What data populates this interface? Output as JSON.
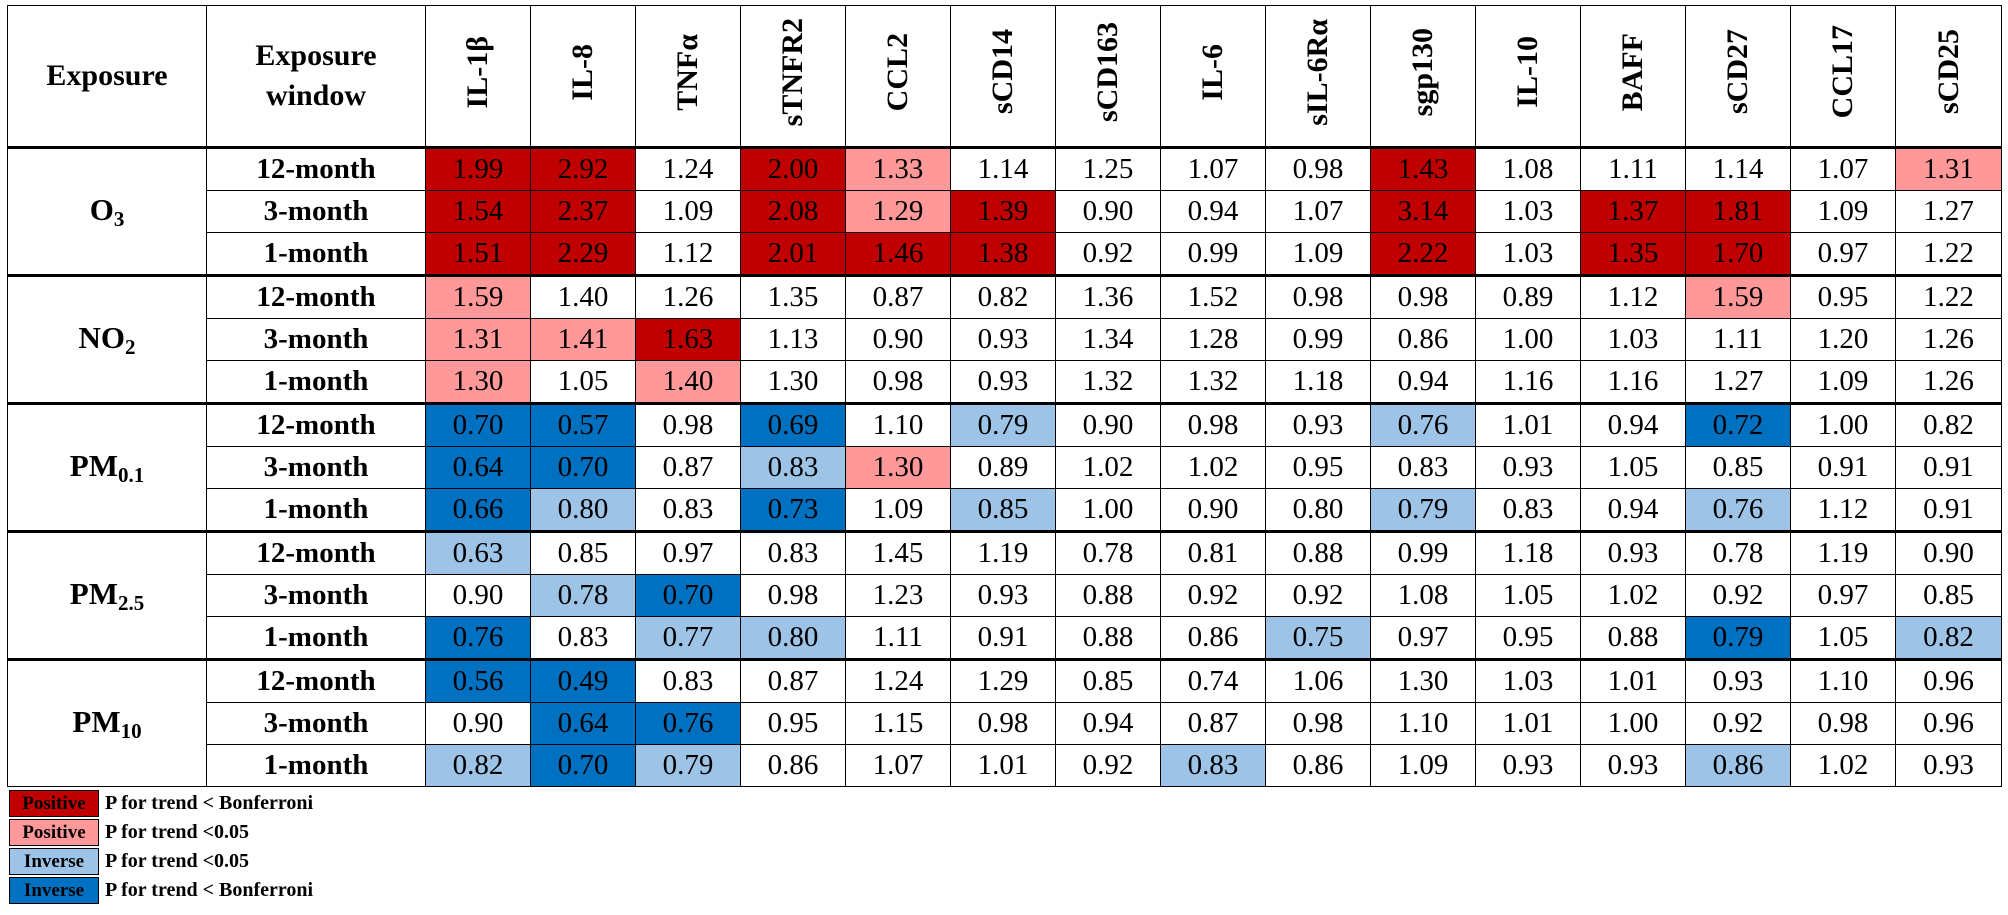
{
  "chart_data": {
    "type": "heatmap",
    "header": {
      "exposure": "Exposure",
      "window": "Exposure window"
    },
    "columns": [
      "IL-1β",
      "IL-8",
      "TNFα",
      "sTNFR2",
      "CCL2",
      "sCD14",
      "sCD163",
      "IL-6",
      "sIL-6Rα",
      "sgp130",
      "IL-10",
      "BAFF",
      "sCD27",
      "CCL17",
      "sCD25"
    ],
    "groups": [
      {
        "name": "O",
        "sub": "3",
        "rows": [
          {
            "window": "12-month",
            "values": [
              "1.99",
              "2.92",
              "1.24",
              "2.00",
              "1.33",
              "1.14",
              "1.25",
              "1.07",
              "0.98",
              "1.43",
              "1.08",
              "1.11",
              "1.14",
              "1.07",
              "1.31"
            ],
            "codes": [
              "PB",
              "PB",
              "",
              "PB",
              "P",
              "",
              "",
              "",
              "",
              "PB",
              "",
              "",
              "",
              "",
              "P"
            ]
          },
          {
            "window": "3-month",
            "values": [
              "1.54",
              "2.37",
              "1.09",
              "2.08",
              "1.29",
              "1.39",
              "0.90",
              "0.94",
              "1.07",
              "3.14",
              "1.03",
              "1.37",
              "1.81",
              "1.09",
              "1.27"
            ],
            "codes": [
              "PB",
              "PB",
              "",
              "PB",
              "P",
              "PB",
              "",
              "",
              "",
              "PB",
              "",
              "PB",
              "PB",
              "",
              ""
            ]
          },
          {
            "window": "1-month",
            "values": [
              "1.51",
              "2.29",
              "1.12",
              "2.01",
              "1.46",
              "1.38",
              "0.92",
              "0.99",
              "1.09",
              "2.22",
              "1.03",
              "1.35",
              "1.70",
              "0.97",
              "1.22"
            ],
            "codes": [
              "PB",
              "PB",
              "",
              "PB",
              "PB",
              "PB",
              "",
              "",
              "",
              "PB",
              "",
              "PB",
              "PB",
              "",
              ""
            ]
          }
        ]
      },
      {
        "name": "NO",
        "sub": "2",
        "rows": [
          {
            "window": "12-month",
            "values": [
              "1.59",
              "1.40",
              "1.26",
              "1.35",
              "0.87",
              "0.82",
              "1.36",
              "1.52",
              "0.98",
              "0.98",
              "0.89",
              "1.12",
              "1.59",
              "0.95",
              "1.22"
            ],
            "codes": [
              "P",
              "",
              "",
              "",
              "",
              "",
              "",
              "",
              "",
              "",
              "",
              "",
              "P",
              "",
              ""
            ]
          },
          {
            "window": "3-month",
            "values": [
              "1.31",
              "1.41",
              "1.63",
              "1.13",
              "0.90",
              "0.93",
              "1.34",
              "1.28",
              "0.99",
              "0.86",
              "1.00",
              "1.03",
              "1.11",
              "1.20",
              "1.26"
            ],
            "codes": [
              "P",
              "P",
              "PB",
              "",
              "",
              "",
              "",
              "",
              "",
              "",
              "",
              "",
              "",
              "",
              ""
            ]
          },
          {
            "window": "1-month",
            "values": [
              "1.30",
              "1.05",
              "1.40",
              "1.30",
              "0.98",
              "0.93",
              "1.32",
              "1.32",
              "1.18",
              "0.94",
              "1.16",
              "1.16",
              "1.27",
              "1.09",
              "1.26"
            ],
            "codes": [
              "P",
              "",
              "P",
              "",
              "",
              "",
              "",
              "",
              "",
              "",
              "",
              "",
              "",
              "",
              ""
            ]
          }
        ]
      },
      {
        "name": "PM",
        "sub": "0.1",
        "rows": [
          {
            "window": "12-month",
            "values": [
              "0.70",
              "0.57",
              "0.98",
              "0.69",
              "1.10",
              "0.79",
              "0.90",
              "0.98",
              "0.93",
              "0.76",
              "1.01",
              "0.94",
              "0.72",
              "1.00",
              "0.82"
            ],
            "codes": [
              "IB",
              "IB",
              "",
              "IB",
              "",
              "I",
              "",
              "",
              "",
              "I",
              "",
              "",
              "IB",
              "",
              ""
            ]
          },
          {
            "window": "3-month",
            "values": [
              "0.64",
              "0.70",
              "0.87",
              "0.83",
              "1.30",
              "0.89",
              "1.02",
              "1.02",
              "0.95",
              "0.83",
              "0.93",
              "1.05",
              "0.85",
              "0.91",
              "0.91"
            ],
            "codes": [
              "IB",
              "IB",
              "",
              "I",
              "P",
              "",
              "",
              "",
              "",
              "",
              "",
              "",
              "",
              "",
              ""
            ]
          },
          {
            "window": "1-month",
            "values": [
              "0.66",
              "0.80",
              "0.83",
              "0.73",
              "1.09",
              "0.85",
              "1.00",
              "0.90",
              "0.80",
              "0.79",
              "0.83",
              "0.94",
              "0.76",
              "1.12",
              "0.91"
            ],
            "codes": [
              "IB",
              "I",
              "",
              "IB",
              "",
              "I",
              "",
              "",
              "",
              "I",
              "",
              "",
              "I",
              "",
              ""
            ]
          }
        ]
      },
      {
        "name": "PM",
        "sub": "2.5",
        "rows": [
          {
            "window": "12-month",
            "values": [
              "0.63",
              "0.85",
              "0.97",
              "0.83",
              "1.45",
              "1.19",
              "0.78",
              "0.81",
              "0.88",
              "0.99",
              "1.18",
              "0.93",
              "0.78",
              "1.19",
              "0.90"
            ],
            "codes": [
              "I",
              "",
              "",
              "",
              "",
              "",
              "",
              "",
              "",
              "",
              "",
              "",
              "",
              "",
              ""
            ]
          },
          {
            "window": "3-month",
            "values": [
              "0.90",
              "0.78",
              "0.70",
              "0.98",
              "1.23",
              "0.93",
              "0.88",
              "0.92",
              "0.92",
              "1.08",
              "1.05",
              "1.02",
              "0.92",
              "0.97",
              "0.85"
            ],
            "codes": [
              "",
              "I",
              "IB",
              "",
              "",
              "",
              "",
              "",
              "",
              "",
              "",
              "",
              "",
              "",
              ""
            ]
          },
          {
            "window": "1-month",
            "values": [
              "0.76",
              "0.83",
              "0.77",
              "0.80",
              "1.11",
              "0.91",
              "0.88",
              "0.86",
              "0.75",
              "0.97",
              "0.95",
              "0.88",
              "0.79",
              "1.05",
              "0.82"
            ],
            "codes": [
              "IB",
              "",
              "I",
              "I",
              "",
              "",
              "",
              "",
              "I",
              "",
              "",
              "",
              "IB",
              "",
              "I"
            ]
          }
        ]
      },
      {
        "name": "PM",
        "sub": "10",
        "rows": [
          {
            "window": "12-month",
            "values": [
              "0.56",
              "0.49",
              "0.83",
              "0.87",
              "1.24",
              "1.29",
              "0.85",
              "0.74",
              "1.06",
              "1.30",
              "1.03",
              "1.01",
              "0.93",
              "1.10",
              "0.96"
            ],
            "codes": [
              "IB",
              "IB",
              "",
              "",
              "",
              "",
              "",
              "",
              "",
              "",
              "",
              "",
              "",
              "",
              ""
            ]
          },
          {
            "window": "3-month",
            "values": [
              "0.90",
              "0.64",
              "0.76",
              "0.95",
              "1.15",
              "0.98",
              "0.94",
              "0.87",
              "0.98",
              "1.10",
              "1.01",
              "1.00",
              "0.92",
              "0.98",
              "0.96"
            ],
            "codes": [
              "",
              "IB",
              "IB",
              "",
              "",
              "",
              "",
              "",
              "",
              "",
              "",
              "",
              "",
              "",
              ""
            ]
          },
          {
            "window": "1-month",
            "values": [
              "0.82",
              "0.70",
              "0.79",
              "0.86",
              "1.07",
              "1.01",
              "0.92",
              "0.83",
              "0.86",
              "1.09",
              "0.93",
              "0.93",
              "0.86",
              "1.02",
              "0.93"
            ],
            "codes": [
              "I",
              "IB",
              "I",
              "",
              "",
              "",
              "",
              "I",
              "",
              "",
              "",
              "",
              "I",
              "",
              ""
            ]
          }
        ]
      }
    ],
    "colors": {
      "PB": "#c00000",
      "P": "#ff9999",
      "I": "#9dc3e6",
      "IB": "#0070c0"
    },
    "legend": [
      {
        "code": "PB",
        "label": "Positive",
        "text": "P for trend < Bonferroni"
      },
      {
        "code": "P",
        "label": "Positive",
        "text": "P for trend <0.05"
      },
      {
        "code": "I",
        "label": "Inverse",
        "text": "P for trend <0.05"
      },
      {
        "code": "IB",
        "label": "Inverse",
        "text": "P for trend < Bonferroni"
      }
    ]
  }
}
